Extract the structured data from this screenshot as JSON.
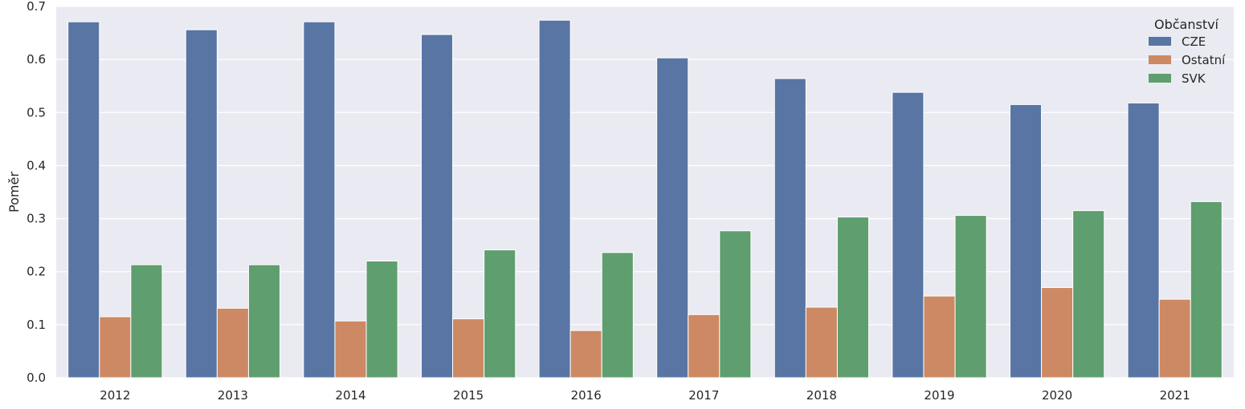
{
  "chart_data": {
    "type": "bar",
    "title": "",
    "xlabel": "",
    "ylabel": "Poměr",
    "ylim": [
      0,
      0.7
    ],
    "yticks": [
      "0.0",
      "0.1",
      "0.2",
      "0.3",
      "0.4",
      "0.5",
      "0.6",
      "0.7"
    ],
    "categories": [
      "2012",
      "2013",
      "2014",
      "2015",
      "2016",
      "2017",
      "2018",
      "2019",
      "2020",
      "2021"
    ],
    "legend_title": "Občanství",
    "legend_placement": "top-right",
    "grid": true,
    "background": "#EAEAF2",
    "series": [
      {
        "name": "CZE",
        "color": "#5875A4",
        "values": [
          0.671,
          0.656,
          0.671,
          0.647,
          0.674,
          0.603,
          0.564,
          0.538,
          0.515,
          0.518
        ]
      },
      {
        "name": "Ostatní",
        "color": "#CC8963",
        "values": [
          0.115,
          0.131,
          0.107,
          0.111,
          0.089,
          0.119,
          0.133,
          0.154,
          0.17,
          0.148
        ]
      },
      {
        "name": "SVK",
        "color": "#5F9E6E",
        "values": [
          0.213,
          0.213,
          0.22,
          0.241,
          0.236,
          0.277,
          0.303,
          0.306,
          0.315,
          0.332
        ]
      }
    ]
  }
}
